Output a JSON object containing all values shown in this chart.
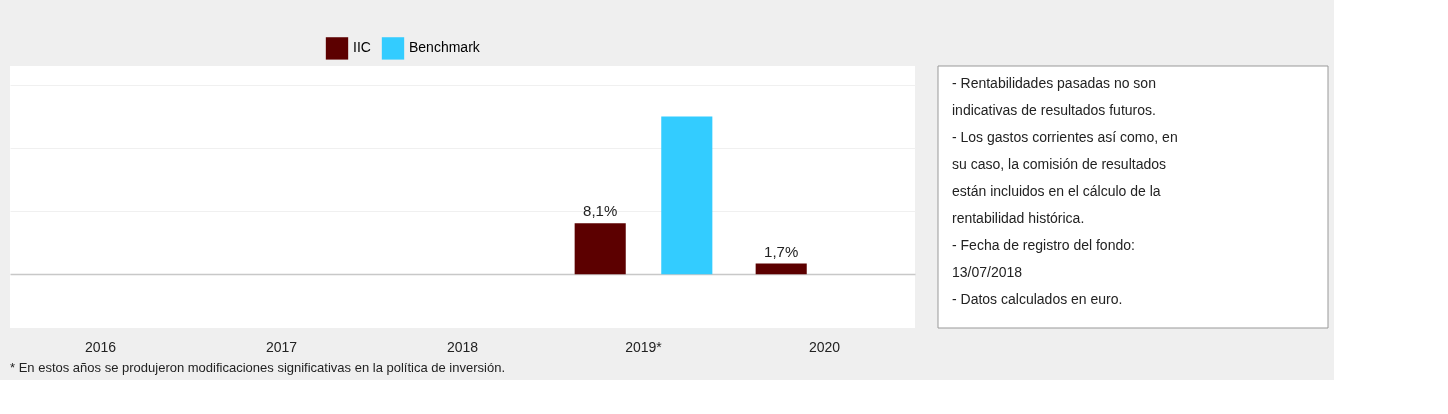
{
  "chart_data": {
    "type": "bar",
    "categories": [
      "2016",
      "2017",
      "2018",
      "2019*",
      "2020"
    ],
    "series": [
      {
        "name": "IIC",
        "color": "#5c0000",
        "values": [
          null,
          null,
          null,
          8.1,
          1.7
        ],
        "value_labels": [
          null,
          null,
          null,
          "8,1%",
          "1,7%"
        ]
      },
      {
        "name": "Benchmark",
        "color": "#33ccff",
        "values": [
          null,
          null,
          null,
          25,
          null
        ],
        "value_labels": [
          null,
          null,
          null,
          null,
          null
        ]
      }
    ],
    "ylim": [
      -8.5,
      33
    ],
    "yticks": [
      {
        "value": 0,
        "label": null
      },
      {
        "value": 10,
        "label": null
      },
      {
        "value": 20,
        "label": null
      },
      {
        "value": 30,
        "label": null
      }
    ],
    "tick_labels": "x",
    "grid": "y",
    "legend": "top",
    "annotations": [
      "- Rentabilidades pasadas no son indicativas de resultados futuros.",
      "- Los gastos corrientes así como, en su caso, la comisión de resultados están incluidos en el cálculo de la rentabilidad histórica.",
      "- Fecha de registro del fondo: 13/07/2018",
      "- Datos calculados en euro.",
      "* En estos años se produjeron modificaciones significativas en la política de inversión."
    ]
  }
}
